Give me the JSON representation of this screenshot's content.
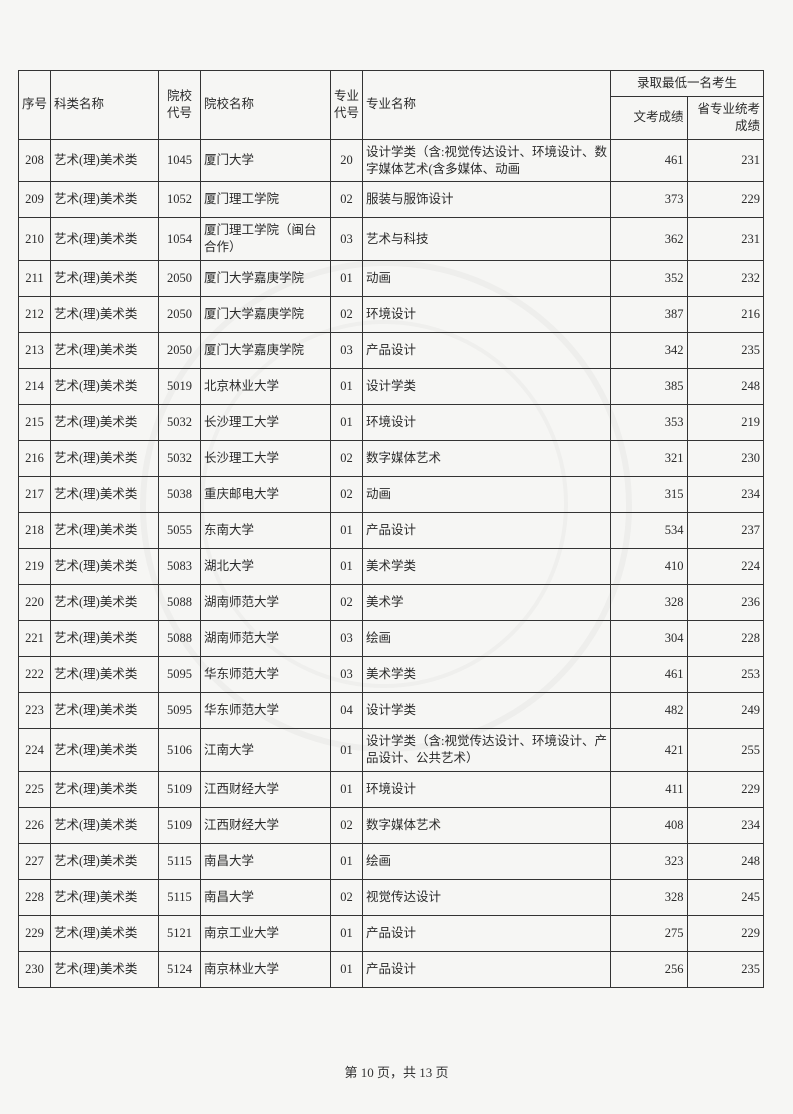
{
  "headers": {
    "seq": "序号",
    "category": "科类名称",
    "school_code": "院校代号",
    "school_name": "院校名称",
    "major_code": "专业代号",
    "major_name": "专业名称",
    "score_group": "录取最低一名考生",
    "score1": "文考成绩",
    "score2": "省专业统考成绩"
  },
  "rows": [
    {
      "seq": "208",
      "cat": "艺术(理)美术类",
      "scode": "1045",
      "sname": "厦门大学",
      "mcode": "20",
      "mname": "设计学类（含:视觉传达设计、环境设计、数字媒体艺术(含多媒体、动画",
      "s1": "461",
      "s2": "231"
    },
    {
      "seq": "209",
      "cat": "艺术(理)美术类",
      "scode": "1052",
      "sname": "厦门理工学院",
      "mcode": "02",
      "mname": "服装与服饰设计",
      "s1": "373",
      "s2": "229"
    },
    {
      "seq": "210",
      "cat": "艺术(理)美术类",
      "scode": "1054",
      "sname": "厦门理工学院（闽台合作）",
      "mcode": "03",
      "mname": "艺术与科技",
      "s1": "362",
      "s2": "231"
    },
    {
      "seq": "211",
      "cat": "艺术(理)美术类",
      "scode": "2050",
      "sname": "厦门大学嘉庚学院",
      "mcode": "01",
      "mname": "动画",
      "s1": "352",
      "s2": "232"
    },
    {
      "seq": "212",
      "cat": "艺术(理)美术类",
      "scode": "2050",
      "sname": "厦门大学嘉庚学院",
      "mcode": "02",
      "mname": "环境设计",
      "s1": "387",
      "s2": "216"
    },
    {
      "seq": "213",
      "cat": "艺术(理)美术类",
      "scode": "2050",
      "sname": "厦门大学嘉庚学院",
      "mcode": "03",
      "mname": "产品设计",
      "s1": "342",
      "s2": "235"
    },
    {
      "seq": "214",
      "cat": "艺术(理)美术类",
      "scode": "5019",
      "sname": "北京林业大学",
      "mcode": "01",
      "mname": "设计学类",
      "s1": "385",
      "s2": "248"
    },
    {
      "seq": "215",
      "cat": "艺术(理)美术类",
      "scode": "5032",
      "sname": "长沙理工大学",
      "mcode": "01",
      "mname": "环境设计",
      "s1": "353",
      "s2": "219"
    },
    {
      "seq": "216",
      "cat": "艺术(理)美术类",
      "scode": "5032",
      "sname": "长沙理工大学",
      "mcode": "02",
      "mname": "数字媒体艺术",
      "s1": "321",
      "s2": "230"
    },
    {
      "seq": "217",
      "cat": "艺术(理)美术类",
      "scode": "5038",
      "sname": "重庆邮电大学",
      "mcode": "02",
      "mname": "动画",
      "s1": "315",
      "s2": "234"
    },
    {
      "seq": "218",
      "cat": "艺术(理)美术类",
      "scode": "5055",
      "sname": "东南大学",
      "mcode": "01",
      "mname": "产品设计",
      "s1": "534",
      "s2": "237"
    },
    {
      "seq": "219",
      "cat": "艺术(理)美术类",
      "scode": "5083",
      "sname": "湖北大学",
      "mcode": "01",
      "mname": "美术学类",
      "s1": "410",
      "s2": "224"
    },
    {
      "seq": "220",
      "cat": "艺术(理)美术类",
      "scode": "5088",
      "sname": "湖南师范大学",
      "mcode": "02",
      "mname": "美术学",
      "s1": "328",
      "s2": "236"
    },
    {
      "seq": "221",
      "cat": "艺术(理)美术类",
      "scode": "5088",
      "sname": "湖南师范大学",
      "mcode": "03",
      "mname": "绘画",
      "s1": "304",
      "s2": "228"
    },
    {
      "seq": "222",
      "cat": "艺术(理)美术类",
      "scode": "5095",
      "sname": "华东师范大学",
      "mcode": "03",
      "mname": "美术学类",
      "s1": "461",
      "s2": "253"
    },
    {
      "seq": "223",
      "cat": "艺术(理)美术类",
      "scode": "5095",
      "sname": "华东师范大学",
      "mcode": "04",
      "mname": "设计学类",
      "s1": "482",
      "s2": "249"
    },
    {
      "seq": "224",
      "cat": "艺术(理)美术类",
      "scode": "5106",
      "sname": "江南大学",
      "mcode": "01",
      "mname": "设计学类（含:视觉传达设计、环境设计、产品设计、公共艺术）",
      "s1": "421",
      "s2": "255"
    },
    {
      "seq": "225",
      "cat": "艺术(理)美术类",
      "scode": "5109",
      "sname": "江西财经大学",
      "mcode": "01",
      "mname": "环境设计",
      "s1": "411",
      "s2": "229"
    },
    {
      "seq": "226",
      "cat": "艺术(理)美术类",
      "scode": "5109",
      "sname": "江西财经大学",
      "mcode": "02",
      "mname": "数字媒体艺术",
      "s1": "408",
      "s2": "234"
    },
    {
      "seq": "227",
      "cat": "艺术(理)美术类",
      "scode": "5115",
      "sname": "南昌大学",
      "mcode": "01",
      "mname": "绘画",
      "s1": "323",
      "s2": "248"
    },
    {
      "seq": "228",
      "cat": "艺术(理)美术类",
      "scode": "5115",
      "sname": "南昌大学",
      "mcode": "02",
      "mname": "视觉传达设计",
      "s1": "328",
      "s2": "245"
    },
    {
      "seq": "229",
      "cat": "艺术(理)美术类",
      "scode": "5121",
      "sname": "南京工业大学",
      "mcode": "01",
      "mname": "产品设计",
      "s1": "275",
      "s2": "229"
    },
    {
      "seq": "230",
      "cat": "艺术(理)美术类",
      "scode": "5124",
      "sname": "南京林业大学",
      "mcode": "01",
      "mname": "产品设计",
      "s1": "256",
      "s2": "235"
    }
  ],
  "footer": {
    "prefix": "第 ",
    "page": "10",
    "middle": " 页，共 ",
    "total": "13",
    "suffix": " 页"
  },
  "tall_rows": [
    0,
    2,
    16
  ]
}
